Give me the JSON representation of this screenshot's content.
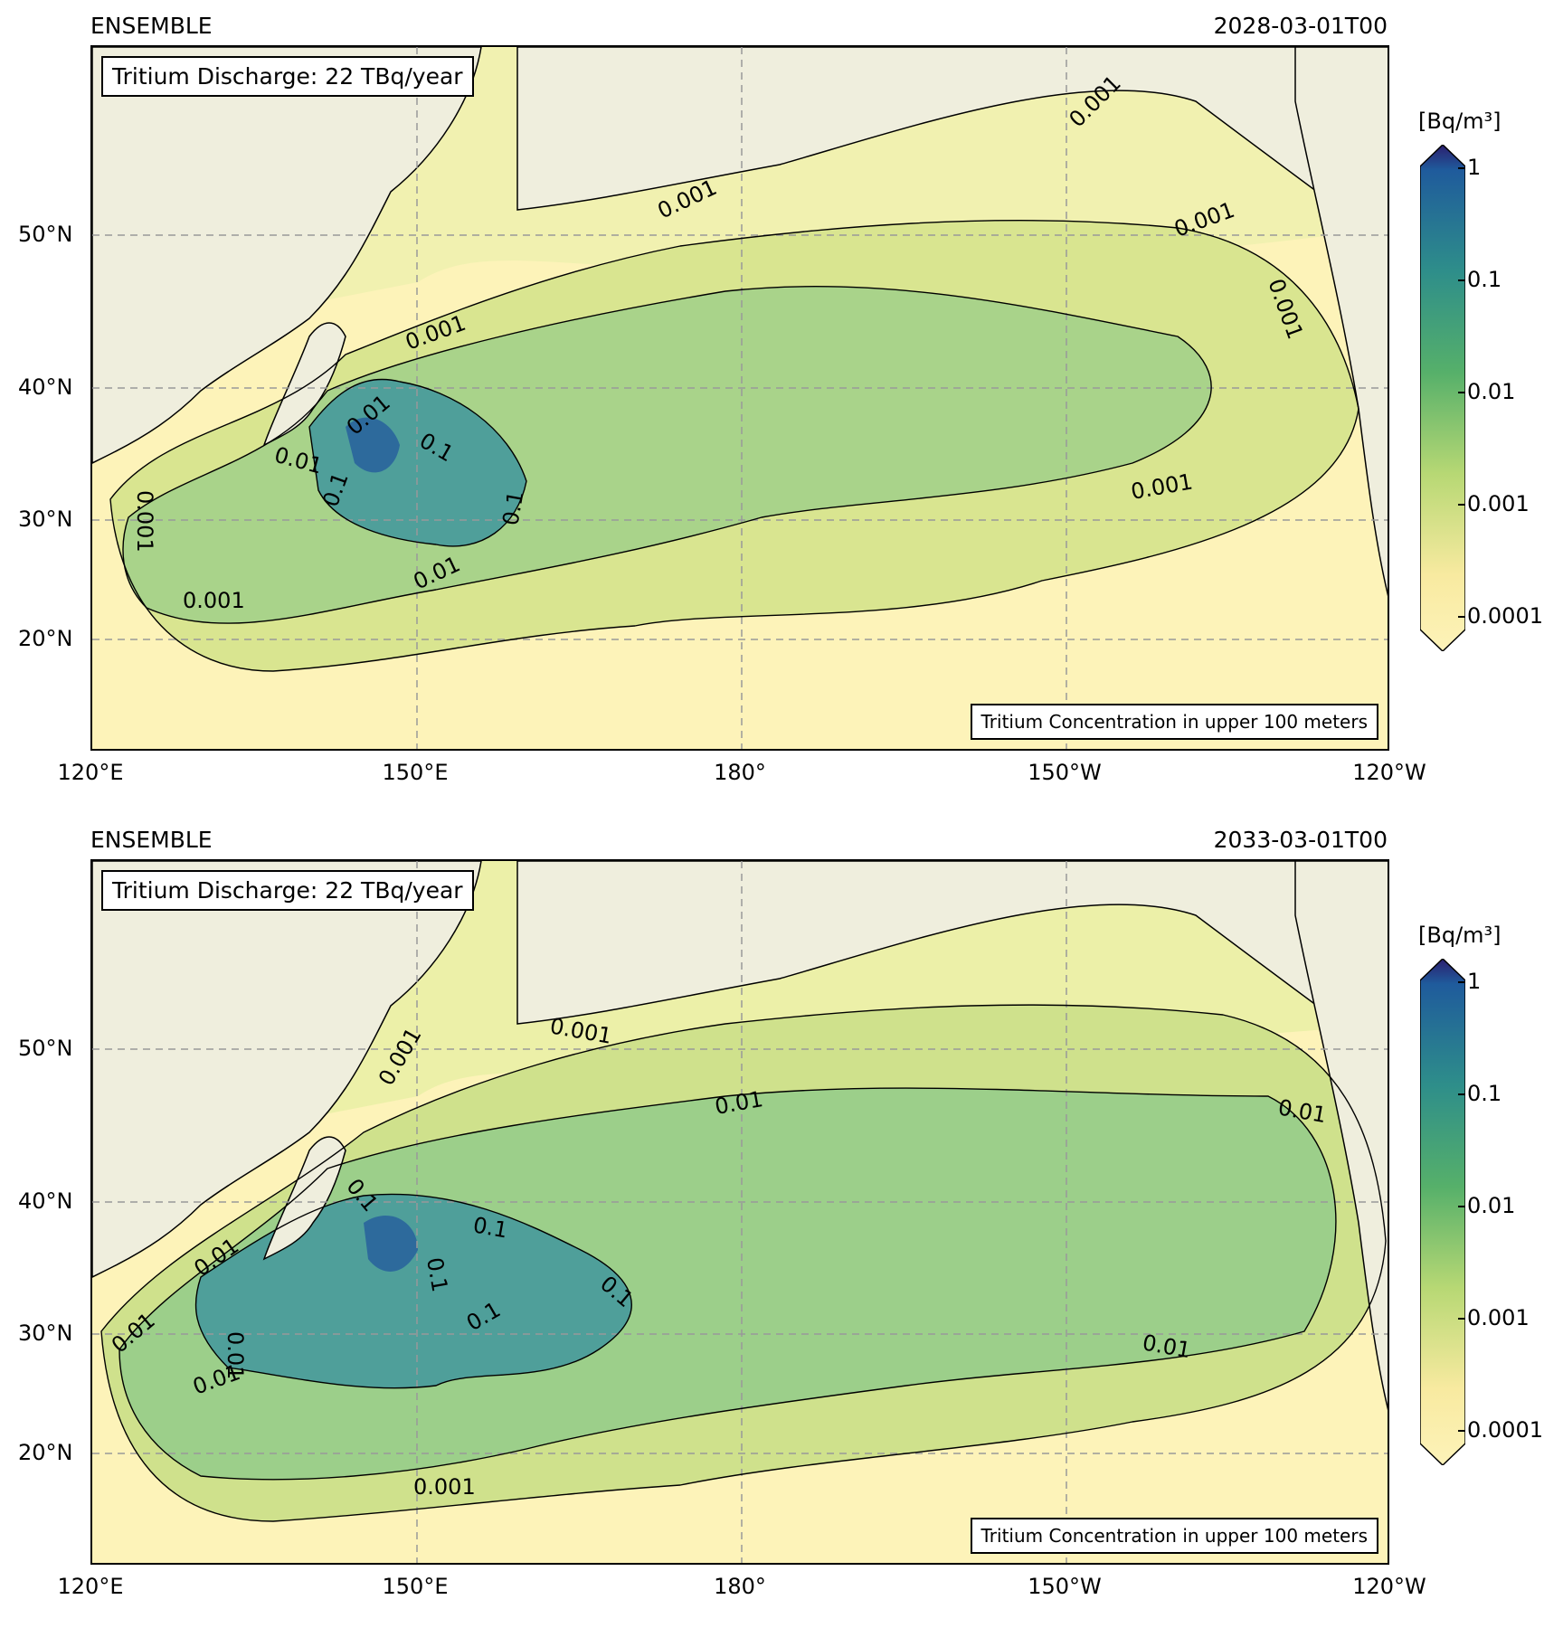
{
  "colorbar": {
    "unit": "[Bq/m³]",
    "ticks": [
      "1",
      "0.1",
      "0.01",
      "0.001",
      "0.0001"
    ],
    "colors": [
      "#2c1f6f",
      "#1f5b9c",
      "#2e8e8a",
      "#56b06a",
      "#b7d874",
      "#f8eaa0",
      "#fdf3b9"
    ]
  },
  "axes": {
    "lat_labels": [
      "50°N",
      "40°N",
      "30°N",
      "20°N"
    ],
    "lon_labels": [
      "120°E",
      "150°E",
      "180°",
      "150°W",
      "120°W"
    ]
  },
  "panels": [
    {
      "model": "ENSEMBLE",
      "time": "2028-03-01T00",
      "discharge": "Tritium Discharge: 22 TBq/year",
      "description": "Tritium Concentration in upper 100 meters",
      "contour_labels": [
        "0.001",
        "0.001",
        "0.001",
        "0.001",
        "0.001",
        "0.01",
        "0.01",
        "0.1",
        "0.1",
        "0.1",
        "0.001",
        "0.01",
        "0.001",
        "0.001"
      ]
    },
    {
      "model": "ENSEMBLE",
      "time": "2033-03-01T00",
      "discharge": "Tritium Discharge: 22 TBq/year",
      "description": "Tritium Concentration in upper 100 meters",
      "contour_labels": [
        "0.001",
        "0.001",
        "0.01",
        "0.01",
        "0.1",
        "0.1",
        "0.1",
        "0.1",
        "0.1",
        "0.01",
        "0.01",
        "0.01",
        "0.01",
        "0.001",
        "0.01"
      ]
    }
  ]
}
